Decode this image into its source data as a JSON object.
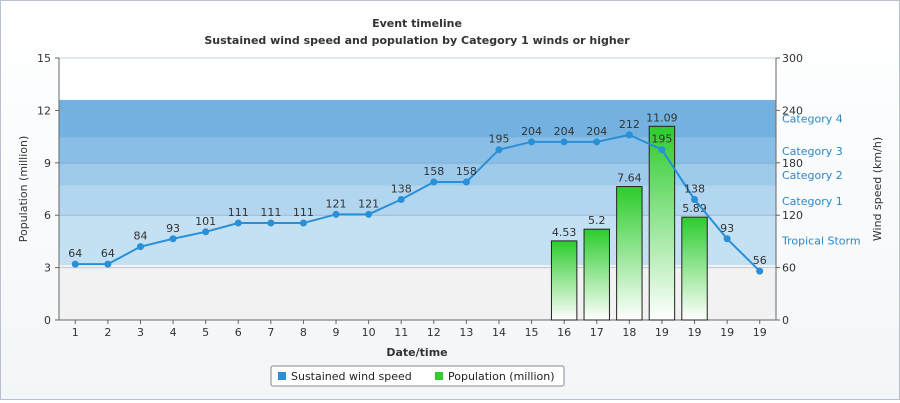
{
  "chart_data": {
    "type": "bar+line",
    "title": "Event timeline",
    "subtitle": "Sustained wind speed and population by Category 1 winds or higher",
    "xlabel": "Date/time",
    "ylabel_left": "Population (million)",
    "ylabel_right": "Wind speed (km/h)",
    "categories": [
      "1",
      "2",
      "3",
      "4",
      "5",
      "6",
      "7",
      "8",
      "9",
      "10",
      "11",
      "12",
      "13",
      "14",
      "15",
      "16",
      "17",
      "18",
      "19",
      "19",
      "19",
      "19"
    ],
    "ylim_left": [
      0,
      15
    ],
    "yticks_left": [
      0,
      3,
      6,
      9,
      12,
      15
    ],
    "ylim_right": [
      0,
      300
    ],
    "yticks_right": [
      0,
      60,
      120,
      180,
      240,
      300
    ],
    "grid": true,
    "legend_position": "bottom",
    "series": [
      {
        "name": "Sustained wind speed",
        "type": "line",
        "axis": "right",
        "color": "#2a8fd6",
        "values": [
          64,
          64,
          84,
          93,
          101,
          111,
          111,
          111,
          121,
          121,
          138,
          158,
          158,
          195,
          204,
          204,
          204,
          212,
          195,
          138,
          93,
          56
        ],
        "labels": [
          "64",
          "64",
          "84",
          "93",
          "101",
          "111",
          "111",
          "111",
          "121",
          "121",
          "138",
          "158",
          "158",
          "195",
          "204",
          "204",
          "204",
          "212",
          "195",
          "138",
          "93",
          "56"
        ]
      },
      {
        "name": "Population (million)",
        "type": "bar",
        "axis": "left",
        "color": "#33cc33",
        "values": [
          null,
          null,
          null,
          null,
          null,
          null,
          null,
          null,
          null,
          null,
          null,
          null,
          null,
          null,
          null,
          4.53,
          5.2,
          7.64,
          11.09,
          5.89,
          null,
          null
        ],
        "labels": [
          "",
          "",
          "",
          "",
          "",
          "",
          "",
          "",
          "",
          "",
          "",
          "",
          "",
          "",
          "",
          "4.53",
          "5.2",
          "7.64",
          "11.09",
          "5.89",
          "",
          ""
        ]
      }
    ],
    "bands": [
      {
        "label": "Tropical Storm",
        "from": 63,
        "to": 119,
        "color": "#c4e0f3"
      },
      {
        "label": "Category 1",
        "from": 119,
        "to": 154,
        "color": "#b2d6ef"
      },
      {
        "label": "Category 2",
        "from": 154,
        "to": 178,
        "color": "#9ecbeb"
      },
      {
        "label": "Category 3",
        "from": 178,
        "to": 209,
        "color": "#89bfe6"
      },
      {
        "label": "Category 4",
        "from": 209,
        "to": 252,
        "color": "#73b2e0"
      }
    ],
    "pre_band": {
      "from": 0,
      "to": 63,
      "color": "#f2f2f2"
    }
  }
}
